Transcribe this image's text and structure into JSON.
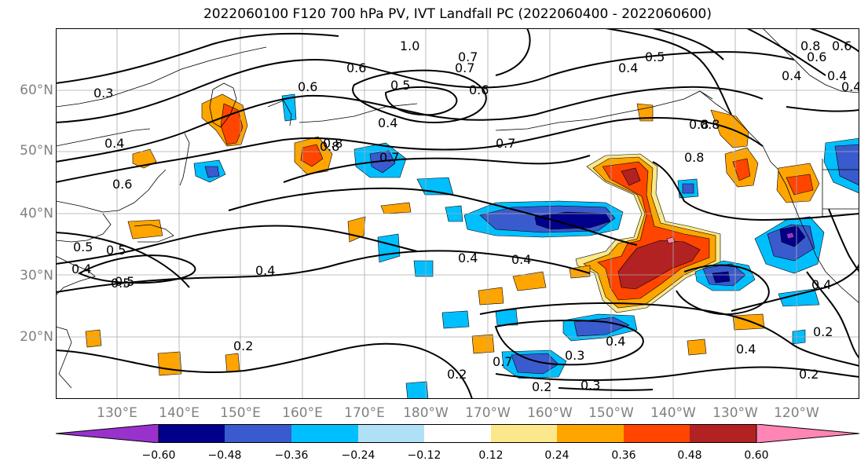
{
  "title": "2022060100 F120 700 hPa PV, IVT Landfall PC (2022060400 - 2022060600)",
  "lat_labels": [
    "60°N",
    "50°N",
    "40°N",
    "30°N",
    "20°N"
  ],
  "lon_labels": [
    "130°E",
    "140°E",
    "150°E",
    "160°E",
    "170°E",
    "180°W",
    "170°W",
    "160°W",
    "150°W",
    "140°W",
    "130°W",
    "120°W"
  ],
  "colorbar": {
    "ticks": [
      "−0.60",
      "−0.48",
      "−0.36",
      "−0.24",
      "−0.12",
      "0.12",
      "0.24",
      "0.36",
      "0.48",
      "0.60"
    ],
    "colors": [
      "#9932cc",
      "#00008b",
      "#3a5bcd",
      "#00bfff",
      "#b0e0f6",
      "#ffffff",
      "#fbe88a",
      "#ffa500",
      "#ff4500",
      "#b22222",
      "#ff85b4"
    ]
  },
  "contour_labels": [
    "0.3",
    "0.4",
    "0.6",
    "0.5",
    "0.7",
    "0.8",
    "1.0",
    "0.4",
    "0.5",
    "0.6",
    "0.8",
    "0.7",
    "0.8",
    "0.7",
    "0.5",
    "0.4",
    "0.8",
    "0.6",
    "0.4",
    "0.4",
    "0.7",
    "0.8",
    "0.4",
    "0.5",
    "0.6",
    "0.5",
    "0.4",
    "0.5",
    "0.4",
    "0.4",
    "0.2",
    "0.7",
    "0.3",
    "0.2",
    "0.3",
    "0.2",
    "0.4",
    "0.4",
    "0.2",
    "0.2",
    "0.4",
    "0.6",
    "0.8",
    "0.4",
    "0.6"
  ],
  "anomaly_colors": {
    "red_dark": "#b22222",
    "red": "#ff4500",
    "orange": "#ffa500",
    "yellow": "#fbe88a",
    "blue_light": "#b0e0f6",
    "blue": "#00bfff",
    "blue_mid": "#3a5bcd",
    "navy": "#00008b",
    "purple": "#9932cc",
    "pink": "#ff85b4"
  },
  "grid_color": "#aaaaaa"
}
